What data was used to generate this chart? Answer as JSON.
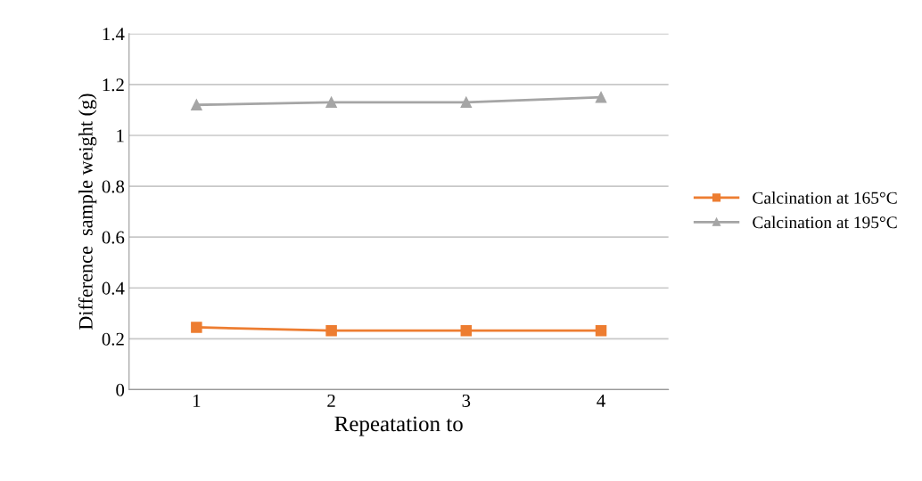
{
  "chart_data": {
    "type": "line",
    "xlabel": "Repeatation to",
    "ylabel": "Difference  sample weight (g)",
    "categories": [
      "1",
      "2",
      "3",
      "4"
    ],
    "series": [
      {
        "name": "Calcination at 165°C",
        "color": "#ed7d31",
        "marker": "square",
        "values": [
          0.245,
          0.232,
          0.232,
          0.232
        ]
      },
      {
        "name": "Calcination at 195°C",
        "color": "#a5a5a5",
        "marker": "triangle",
        "values": [
          1.12,
          1.13,
          1.13,
          1.15
        ]
      }
    ],
    "ylim": [
      0,
      1.4
    ],
    "yticks": [
      0,
      0.2,
      0.4,
      0.6,
      0.8,
      1,
      1.2,
      1.4
    ],
    "grid": "y",
    "legend": "right"
  }
}
